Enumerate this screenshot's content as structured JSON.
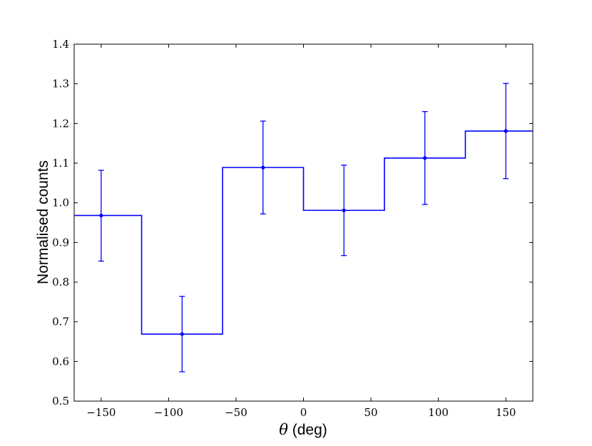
{
  "chart_data": {
    "type": "line",
    "title": "",
    "xlabel_symbol": "θ",
    "xlabel_unit": " (deg)",
    "ylabel": "Normalised counts",
    "xlim": [
      -170,
      170
    ],
    "ylim": [
      0.5,
      1.4
    ],
    "grid": false,
    "xticks": [
      -150,
      -100,
      -50,
      0,
      50,
      100,
      150
    ],
    "xtick_labels": [
      "−150",
      "−100",
      "−50",
      "0",
      "50",
      "100",
      "150"
    ],
    "yticks": [
      0.5,
      0.6,
      0.7,
      0.8,
      0.9,
      1.0,
      1.1,
      1.2,
      1.3,
      1.4
    ],
    "ytick_labels": [
      "0.5",
      "0.6",
      "0.7",
      "0.8",
      "0.9",
      "1.0",
      "1.1",
      "1.2",
      "1.3",
      "1.4"
    ],
    "series": [
      {
        "style": "step-histogram",
        "color": "#0000ff",
        "bin_edges": [
          -180,
          -120,
          -60,
          0,
          60,
          120,
          180
        ],
        "x": [
          -150,
          -90,
          -30,
          30,
          90,
          150
        ],
        "y": [
          0.968,
          0.669,
          1.089,
          0.981,
          1.113,
          1.181
        ],
        "y_err_low": [
          0.853,
          0.574,
          0.972,
          0.867,
          0.996,
          1.061
        ],
        "y_err_high": [
          1.082,
          0.764,
          1.206,
          1.095,
          1.23,
          1.301
        ]
      }
    ]
  }
}
